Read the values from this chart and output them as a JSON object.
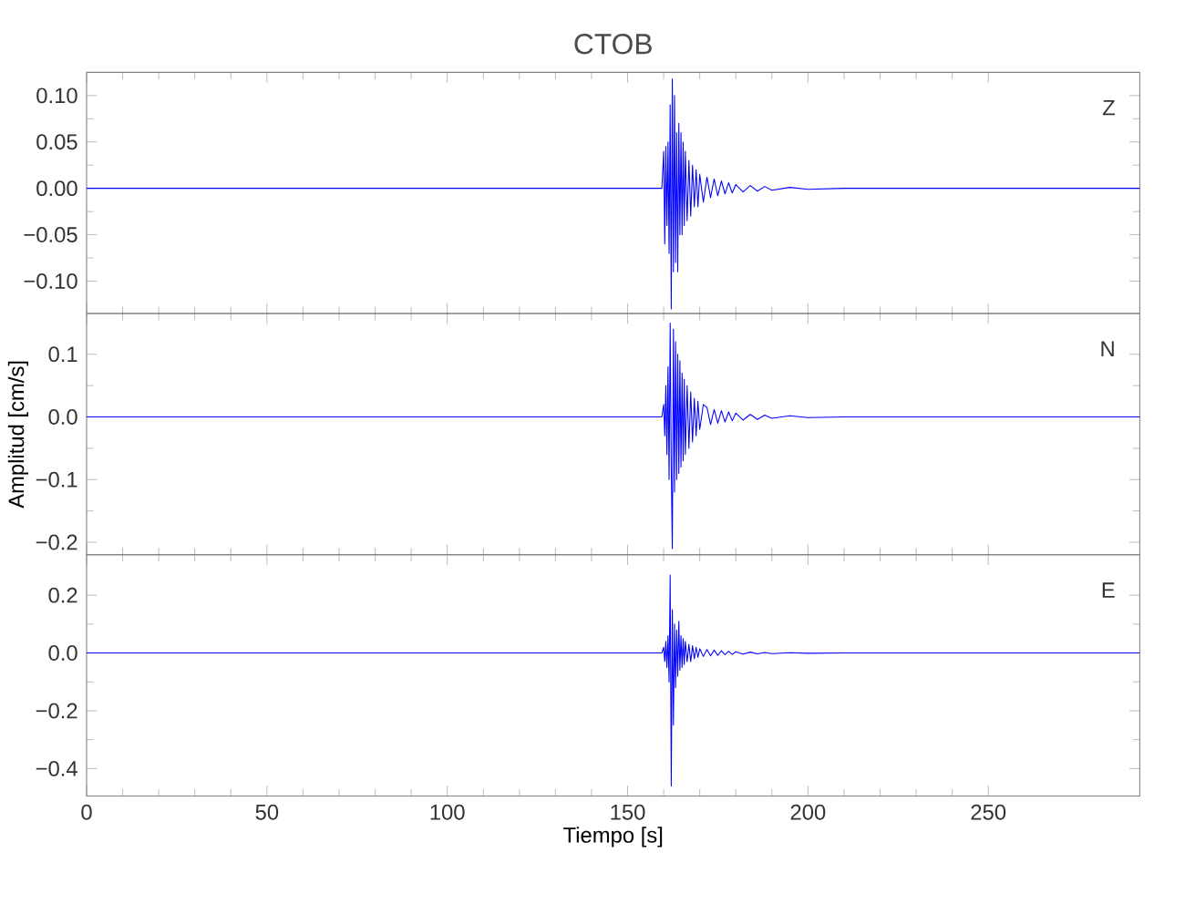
{
  "chart_data": [
    {
      "type": "line",
      "title": "CTOB",
      "annotations": [
        "Z"
      ],
      "tick_labels": "y",
      "grid": false,
      "xlim": [
        0,
        292
      ],
      "xticks": [
        0,
        50,
        100,
        150,
        200,
        250
      ],
      "ylim": [
        -0.135,
        0.125
      ],
      "yticks": [
        {
          "value": -0.1,
          "label": "−0.10"
        },
        {
          "value": -0.05,
          "label": "−0.05"
        },
        {
          "value": 0,
          "label": "0.00"
        },
        {
          "value": 0.05,
          "label": "0.05"
        },
        {
          "value": 0.1,
          "label": "0.10"
        }
      ],
      "x": [
        0,
        20,
        40,
        60,
        80,
        100,
        120,
        140,
        159.5,
        160,
        160.3,
        160.6,
        160.9,
        161.2,
        161.5,
        161.8,
        162.1,
        162.4,
        162.7,
        163.0,
        163.3,
        163.6,
        163.9,
        164.2,
        164.5,
        164.8,
        165.1,
        165.4,
        165.7,
        166.0,
        166.5,
        167,
        167.5,
        168,
        168.5,
        169,
        169.5,
        170,
        171,
        172,
        173,
        174,
        175,
        176,
        177,
        178,
        179,
        180,
        182,
        184,
        186,
        188,
        190,
        195,
        200,
        210,
        220,
        230,
        240,
        260,
        292
      ],
      "series": [
        {
          "color": "#0000ff",
          "values": [
            0,
            0,
            0,
            0,
            0,
            0,
            0,
            0,
            0,
            0.04,
            -0.06,
            0.045,
            -0.04,
            0.05,
            -0.07,
            0.09,
            -0.13,
            0.118,
            -0.09,
            0.1,
            -0.08,
            0.06,
            -0.09,
            0.07,
            -0.05,
            0.06,
            -0.05,
            0.05,
            -0.04,
            0.04,
            -0.035,
            0.03,
            -0.03,
            0.025,
            -0.02,
            0.02,
            -0.02,
            0.015,
            -0.015,
            0.012,
            -0.01,
            0.01,
            -0.008,
            0.008,
            -0.006,
            0.006,
            -0.005,
            0.004,
            -0.004,
            0.003,
            -0.003,
            0.002,
            -0.002,
            0.001,
            -0.001,
            0,
            0,
            0,
            0,
            0,
            0
          ]
        }
      ]
    },
    {
      "type": "line",
      "ylabel": "Amplitud [cm/s]",
      "annotations": [
        "N"
      ],
      "tick_labels": "y",
      "grid": false,
      "xlim": [
        0,
        292
      ],
      "xticks": [
        0,
        50,
        100,
        150,
        200,
        250
      ],
      "ylim": [
        -0.22,
        0.165
      ],
      "yticks": [
        {
          "value": -0.2,
          "label": "−0.2"
        },
        {
          "value": -0.1,
          "label": "−0.1"
        },
        {
          "value": 0,
          "label": "0.0"
        },
        0.1
      ],
      "x": [
        0,
        20,
        40,
        60,
        80,
        100,
        120,
        140,
        159.5,
        160,
        160.3,
        160.6,
        160.9,
        161.2,
        161.5,
        161.8,
        162.1,
        162.4,
        162.7,
        163.0,
        163.3,
        163.6,
        163.9,
        164.2,
        164.5,
        164.8,
        165.1,
        165.4,
        165.7,
        166.0,
        166.5,
        167,
        167.5,
        168,
        168.5,
        169,
        169.5,
        170,
        171,
        172,
        173,
        174,
        175,
        176,
        177,
        178,
        179,
        180,
        182,
        184,
        186,
        188,
        190,
        195,
        200,
        210,
        220,
        230,
        240,
        260,
        292
      ],
      "series": [
        {
          "color": "#0000ff",
          "values": [
            0,
            0,
            0,
            0,
            0,
            0,
            0,
            0,
            0,
            0.02,
            -0.03,
            0.05,
            -0.06,
            0.08,
            -0.1,
            0.15,
            -0.08,
            -0.21,
            0.14,
            -0.12,
            0.12,
            -0.1,
            0.1,
            -0.09,
            0.09,
            -0.08,
            0.07,
            -0.07,
            0.06,
            -0.06,
            0.05,
            -0.05,
            0.04,
            -0.04,
            0.03,
            -0.03,
            0.025,
            -0.02,
            0.02,
            0.015,
            -0.012,
            0.012,
            -0.01,
            0.01,
            -0.008,
            0.008,
            -0.006,
            0.006,
            -0.005,
            0.004,
            -0.004,
            0.003,
            -0.002,
            0.002,
            -0.001,
            0,
            0,
            0,
            0,
            0,
            0
          ]
        }
      ]
    },
    {
      "type": "line",
      "xlabel": "Tiempo [s]",
      "annotations": [
        "E"
      ],
      "grid": false,
      "xlim": [
        0,
        292
      ],
      "xticks": [
        0,
        50,
        100,
        150,
        200,
        250
      ],
      "ylim": [
        -0.495,
        0.34
      ],
      "yticks": [
        {
          "value": -0.4,
          "label": "−0.4"
        },
        {
          "value": -0.2,
          "label": "−0.2"
        },
        {
          "value": 0,
          "label": "0.0"
        },
        0.2
      ],
      "x": [
        0,
        20,
        40,
        60,
        80,
        100,
        120,
        140,
        159.5,
        160,
        160.3,
        160.6,
        160.9,
        161.2,
        161.5,
        161.8,
        162.1,
        162.4,
        162.7,
        163.0,
        163.3,
        163.6,
        163.9,
        164.2,
        164.5,
        164.8,
        165.1,
        165.4,
        165.7,
        166.0,
        166.5,
        167,
        167.5,
        168,
        168.5,
        169,
        169.5,
        170,
        171,
        172,
        173,
        174,
        175,
        176,
        177,
        178,
        179,
        180,
        182,
        184,
        186,
        188,
        190,
        195,
        200,
        210,
        220,
        230,
        240,
        260,
        292
      ],
      "series": [
        {
          "color": "#0000ff",
          "values": [
            0,
            0,
            0,
            0,
            0,
            0,
            0,
            0,
            0,
            0.02,
            -0.03,
            0.04,
            -0.05,
            0.06,
            -0.1,
            0.27,
            -0.46,
            0.15,
            -0.25,
            0.1,
            -0.12,
            0.08,
            -0.08,
            0.11,
            -0.06,
            0.06,
            -0.05,
            0.05,
            -0.04,
            0.04,
            -0.03,
            0.03,
            -0.03,
            0.025,
            -0.02,
            0.02,
            -0.015,
            0.015,
            -0.012,
            0.012,
            -0.01,
            0.01,
            -0.008,
            0.008,
            -0.006,
            0.006,
            -0.005,
            0.004,
            -0.004,
            0.003,
            -0.003,
            0.002,
            -0.002,
            0.001,
            -0.001,
            0,
            0,
            0,
            0,
            0,
            0
          ]
        }
      ]
    }
  ]
}
